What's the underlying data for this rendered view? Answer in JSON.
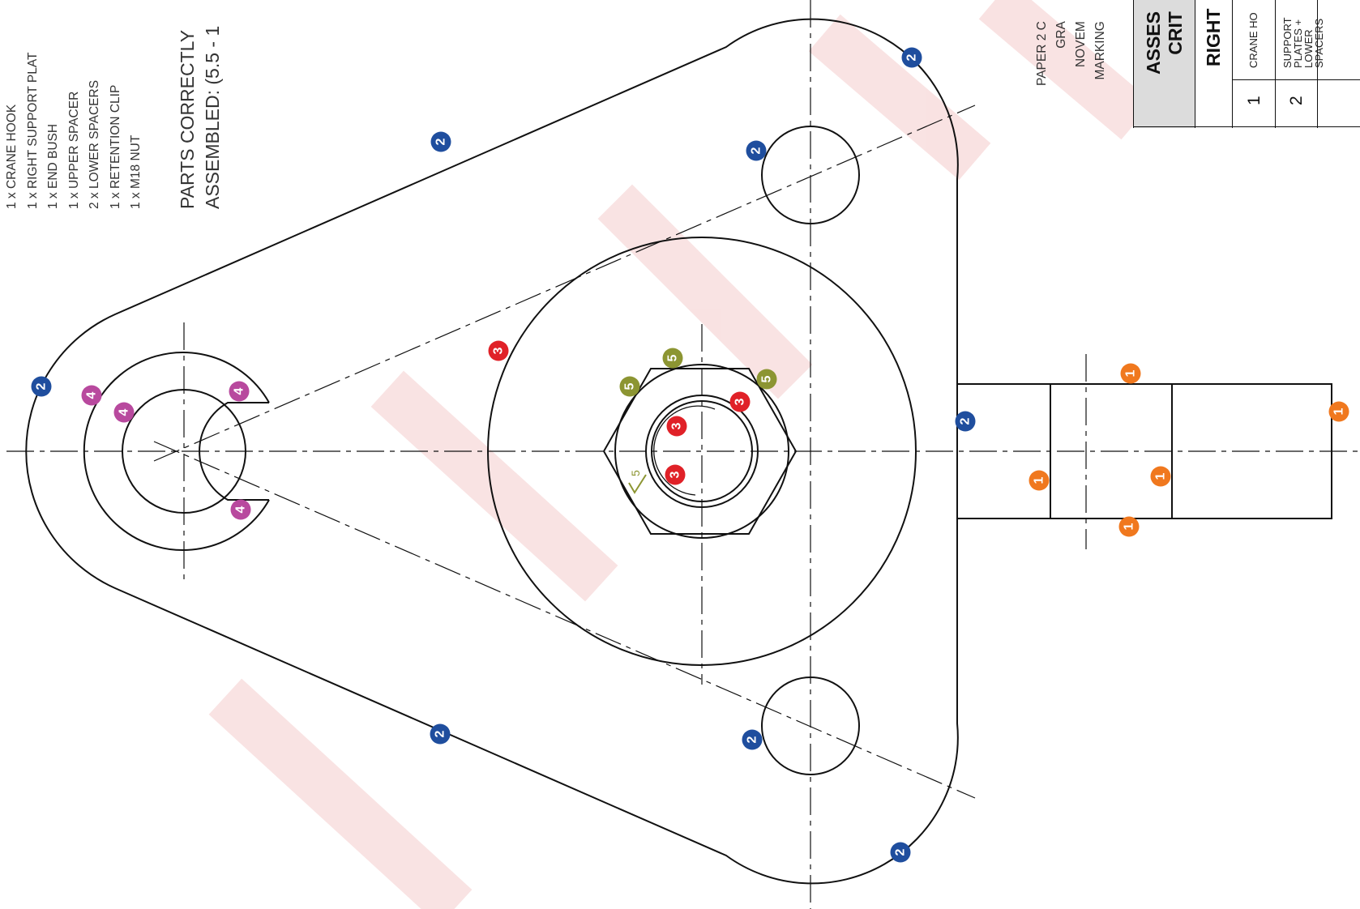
{
  "parts_list": [
    "1 x CRANE HOOK",
    "1 x RIGHT SUPPORT PLAT",
    "1 x END BUSH",
    "1 x UPPER SPACER",
    "2 x LOWER SPACERS",
    "1 x RETENTION CLIP",
    "1 x M18 NUT"
  ],
  "assembled_note": [
    "PARTS CORRECTLY",
    "ASSEMBLED: (5.5 - 1"
  ],
  "paper_block": [
    "PAPER 2 C",
    "GRA",
    "NOVEM",
    "MARKING"
  ],
  "criteria_table": {
    "header_lines": [
      "ASSES",
      "CRIT"
    ],
    "subheader": "RIGHT",
    "rows": [
      {
        "number": "1",
        "label_lines": [
          "CRANE HO"
        ]
      },
      {
        "number": "2",
        "label_lines": [
          "SUPPORT",
          "PLATES +",
          "LOWER",
          "SPACERS"
        ]
      }
    ]
  },
  "surface_finish_value": "5",
  "markers": [
    {
      "label": "1",
      "color": "#f0781e"
    },
    {
      "label": "2",
      "color": "#1f4e9e"
    },
    {
      "label": "3",
      "color": "#e02128"
    },
    {
      "label": "4",
      "color": "#b8499e"
    },
    {
      "label": "5",
      "color": "#8c9532"
    }
  ],
  "colors": {
    "line": "#111111",
    "watermark": "#f7d8d8",
    "surface_symbol": "#8c9532",
    "table_header_bg": "#dcdcdc"
  }
}
